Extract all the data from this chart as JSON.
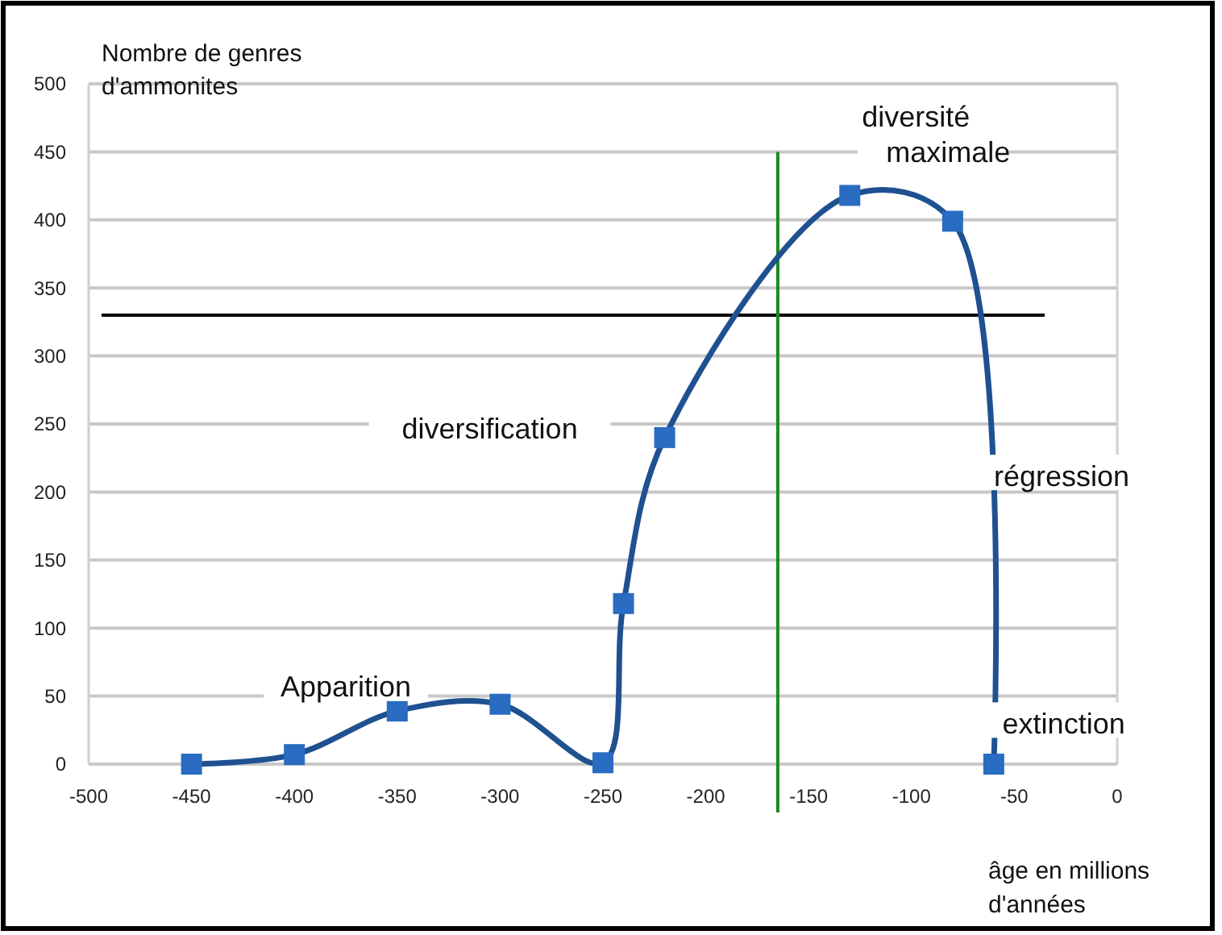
{
  "chart_data": {
    "type": "line",
    "ylabel": "Nombre de genres d'ammonites",
    "xlabel": "âge en millions d'années",
    "x": [
      -450,
      -400,
      -350,
      -300,
      -250,
      -240,
      -220,
      -130,
      -80,
      -60
    ],
    "series": [
      {
        "color": "#1f5191",
        "values": [
          0,
          7,
          39,
          44,
          1,
          118,
          240,
          418,
          399,
          0
        ]
      }
    ],
    "marker": "square",
    "line_style": "solid",
    "grid": "y",
    "xlim": [
      -500,
      0
    ],
    "xticks": [
      -500,
      -450,
      -400,
      -350,
      -300,
      -250,
      -200,
      -150,
      -100,
      -50,
      0
    ],
    "ylim": [
      0,
      500
    ],
    "yticks": [
      0,
      50,
      100,
      150,
      200,
      250,
      300,
      350,
      400,
      450,
      500
    ],
    "ref_lines": [
      {
        "axis": "y",
        "value": 330,
        "color": "#000000"
      },
      {
        "axis": "x",
        "value": -165,
        "color": "#1a8a1a"
      }
    ],
    "annotations": [
      "Apparition",
      "diversification",
      "diversité maximale",
      "régression",
      "extinction"
    ]
  }
}
